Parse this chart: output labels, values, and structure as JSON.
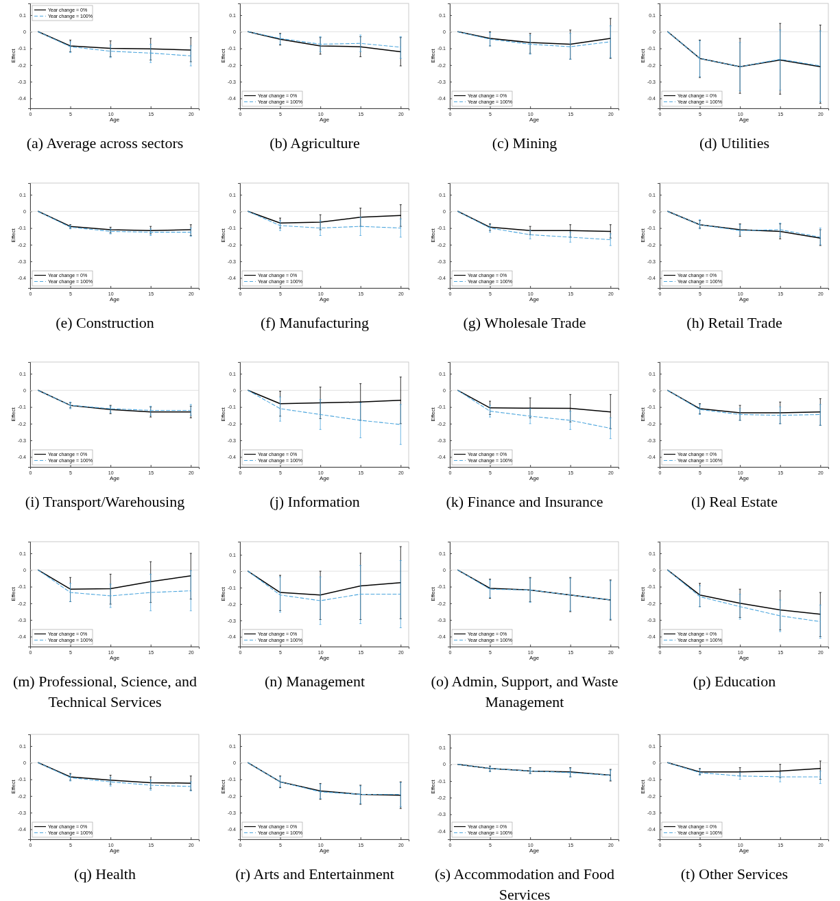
{
  "chart_data": [
    {
      "type": "line",
      "title": "(a) Average across sectors",
      "xlabel": "Age",
      "ylabel": "Effect",
      "x": [
        1,
        5,
        10,
        15,
        20
      ],
      "xlim": [
        0,
        21
      ],
      "ylim": [
        -0.46,
        0.17
      ],
      "xticks": [
        0,
        5,
        10,
        15,
        20
      ],
      "yticks": [
        -0.4,
        -0.3,
        -0.2,
        -0.1,
        0,
        0.1
      ],
      "legend": "top left",
      "ref_lines": [
        {
          "axis": "y",
          "value": 0,
          "color": "#d9d9d9"
        }
      ],
      "series": [
        {
          "name": "Year change = 0%",
          "color": "#000000",
          "line_style": "solid",
          "values": [
            0,
            -0.085,
            -0.1,
            -0.103,
            -0.11
          ],
          "errors": [
            null,
            [
              -0.12,
              -0.05
            ],
            [
              -0.15,
              -0.055
            ],
            [
              -0.17,
              -0.04
            ],
            [
              -0.18,
              -0.035
            ]
          ]
        },
        {
          "name": "Year change = 100%",
          "color": "#4da6dd",
          "line_style": "dashed",
          "values": [
            0,
            -0.09,
            -0.117,
            -0.128,
            -0.145
          ],
          "errors": [
            null,
            [
              -0.125,
              -0.06
            ],
            [
              -0.155,
              -0.08
            ],
            [
              -0.185,
              -0.075
            ],
            [
              -0.205,
              -0.085
            ]
          ]
        }
      ]
    },
    {
      "type": "line",
      "title": "(b) Agriculture",
      "xlabel": "Age",
      "ylabel": "Effect",
      "x": [
        1,
        5,
        10,
        15,
        20
      ],
      "xlim": [
        0,
        21
      ],
      "ylim": [
        -0.46,
        0.17
      ],
      "xticks": [
        0,
        5,
        10,
        15,
        20
      ],
      "yticks": [
        -0.4,
        -0.3,
        -0.2,
        -0.1,
        0,
        0.1
      ],
      "legend": "bottom left",
      "ref_lines": [
        {
          "axis": "y",
          "value": 0,
          "color": "#d9d9d9"
        }
      ],
      "series": [
        {
          "name": "Year change = 0%",
          "color": "#000000",
          "line_style": "solid",
          "values": [
            0,
            -0.045,
            -0.085,
            -0.09,
            -0.12
          ],
          "errors": [
            null,
            [
              -0.08,
              -0.01
            ],
            [
              -0.135,
              -0.035
            ],
            [
              -0.15,
              -0.03
            ],
            [
              -0.205,
              -0.035
            ]
          ]
        },
        {
          "name": "Year change = 100%",
          "color": "#4da6dd",
          "line_style": "dashed",
          "values": [
            0,
            -0.04,
            -0.075,
            -0.07,
            -0.093
          ],
          "errors": [
            null,
            [
              -0.075,
              -0.015
            ],
            [
              -0.12,
              -0.03
            ],
            [
              -0.12,
              -0.02
            ],
            [
              -0.16,
              -0.03
            ]
          ]
        }
      ]
    },
    {
      "type": "line",
      "title": "(c) Mining",
      "xlabel": "Age",
      "ylabel": "Effect",
      "x": [
        1,
        5,
        10,
        15,
        20
      ],
      "xlim": [
        0,
        21
      ],
      "ylim": [
        -0.46,
        0.17
      ],
      "xticks": [
        0,
        5,
        10,
        15,
        20
      ],
      "yticks": [
        -0.4,
        -0.3,
        -0.2,
        -0.1,
        0,
        0.1
      ],
      "legend": "bottom left",
      "ref_lines": [
        {
          "axis": "y",
          "value": 0,
          "color": "#d9d9d9"
        }
      ],
      "series": [
        {
          "name": "Year change = 0%",
          "color": "#000000",
          "line_style": "solid",
          "values": [
            0,
            -0.04,
            -0.065,
            -0.075,
            -0.04
          ],
          "errors": [
            null,
            [
              -0.085,
              0
            ],
            [
              -0.13,
              -0.01
            ],
            [
              -0.165,
              0.01
            ],
            [
              -0.16,
              0.08
            ]
          ]
        },
        {
          "name": "Year change = 100%",
          "color": "#4da6dd",
          "line_style": "dashed",
          "values": [
            0,
            -0.045,
            -0.075,
            -0.09,
            -0.06
          ],
          "errors": [
            null,
            [
              -0.085,
              -0.005
            ],
            [
              -0.135,
              -0.02
            ],
            [
              -0.165,
              -0.01
            ],
            [
              -0.155,
              0.035
            ]
          ]
        }
      ]
    },
    {
      "type": "line",
      "title": "(d) Utilities",
      "xlabel": "Age",
      "ylabel": "Effect",
      "x": [
        1,
        5,
        10,
        15,
        20
      ],
      "xlim": [
        0,
        21
      ],
      "ylim": [
        -0.46,
        0.17
      ],
      "xticks": [
        0,
        5,
        10,
        15,
        20
      ],
      "yticks": [
        -0.4,
        -0.3,
        -0.2,
        -0.1,
        0,
        0.1
      ],
      "legend": "bottom left",
      "ref_lines": [
        {
          "axis": "y",
          "value": 0,
          "color": "#d9d9d9"
        }
      ],
      "series": [
        {
          "name": "Year change = 0%",
          "color": "#000000",
          "line_style": "solid",
          "values": [
            0,
            -0.16,
            -0.21,
            -0.17,
            -0.21
          ],
          "errors": [
            null,
            [
              -0.275,
              -0.05
            ],
            [
              -0.37,
              -0.04
            ],
            [
              -0.375,
              0.05
            ],
            [
              -0.43,
              0.04
            ]
          ]
        },
        {
          "name": "Year change = 100%",
          "color": "#4da6dd",
          "line_style": "dashed",
          "values": [
            0,
            -0.16,
            -0.21,
            -0.165,
            -0.205
          ],
          "errors": [
            null,
            [
              -0.27,
              -0.055
            ],
            [
              -0.355,
              -0.065
            ],
            [
              -0.35,
              0.01
            ],
            [
              -0.42,
              0.005
            ]
          ]
        }
      ]
    },
    {
      "type": "line",
      "title": "(e) Construction",
      "xlabel": "Age",
      "ylabel": "Effect",
      "x": [
        1,
        5,
        10,
        15,
        20
      ],
      "xlim": [
        0,
        21
      ],
      "ylim": [
        -0.46,
        0.17
      ],
      "xticks": [
        0,
        5,
        10,
        15,
        20
      ],
      "yticks": [
        -0.4,
        -0.3,
        -0.2,
        -0.1,
        0,
        0.1
      ],
      "legend": "bottom left",
      "ref_lines": [
        {
          "axis": "y",
          "value": 0,
          "color": "#d9d9d9"
        }
      ],
      "series": [
        {
          "name": "Year change = 0%",
          "color": "#000000",
          "line_style": "solid",
          "values": [
            0,
            -0.09,
            -0.11,
            -0.115,
            -0.11
          ],
          "errors": [
            null,
            [
              -0.1,
              -0.08
            ],
            [
              -0.13,
              -0.095
            ],
            [
              -0.135,
              -0.09
            ],
            [
              -0.145,
              -0.08
            ]
          ]
        },
        {
          "name": "Year change = 100%",
          "color": "#4da6dd",
          "line_style": "dashed",
          "values": [
            0,
            -0.095,
            -0.12,
            -0.125,
            -0.125
          ],
          "errors": [
            null,
            [
              -0.105,
              -0.085
            ],
            [
              -0.135,
              -0.105
            ],
            [
              -0.145,
              -0.105
            ],
            [
              -0.15,
              -0.1
            ]
          ]
        }
      ]
    },
    {
      "type": "line",
      "title": "(f) Manufacturing",
      "xlabel": "Age",
      "ylabel": "Effect",
      "x": [
        1,
        5,
        10,
        15,
        20
      ],
      "xlim": [
        0,
        21
      ],
      "ylim": [
        -0.46,
        0.17
      ],
      "xticks": [
        0,
        5,
        10,
        15,
        20
      ],
      "yticks": [
        -0.4,
        -0.3,
        -0.2,
        -0.1,
        0,
        0.1
      ],
      "legend": "bottom left",
      "ref_lines": [
        {
          "axis": "y",
          "value": 0,
          "color": "#d9d9d9"
        }
      ],
      "series": [
        {
          "name": "Year change = 0%",
          "color": "#000000",
          "line_style": "solid",
          "values": [
            0,
            -0.07,
            -0.065,
            -0.035,
            -0.025
          ],
          "errors": [
            null,
            [
              -0.1,
              -0.04
            ],
            [
              -0.11,
              -0.02
            ],
            [
              -0.09,
              0.02
            ],
            [
              -0.09,
              0.04
            ]
          ]
        },
        {
          "name": "Year change = 100%",
          "color": "#4da6dd",
          "line_style": "dashed",
          "values": [
            0,
            -0.085,
            -0.1,
            -0.09,
            -0.1
          ],
          "errors": [
            null,
            [
              -0.115,
              -0.055
            ],
            [
              -0.145,
              -0.055
            ],
            [
              -0.145,
              -0.035
            ],
            [
              -0.155,
              -0.045
            ]
          ]
        }
      ]
    },
    {
      "type": "line",
      "title": "(g) Wholesale Trade",
      "xlabel": "Age",
      "ylabel": "Effect",
      "x": [
        1,
        5,
        10,
        15,
        20
      ],
      "xlim": [
        0,
        21
      ],
      "ylim": [
        -0.46,
        0.17
      ],
      "xticks": [
        0,
        5,
        10,
        15,
        20
      ],
      "yticks": [
        -0.4,
        -0.3,
        -0.2,
        -0.1,
        0,
        0.1
      ],
      "legend": "bottom left",
      "ref_lines": [
        {
          "axis": "y",
          "value": 0,
          "color": "#d9d9d9"
        }
      ],
      "series": [
        {
          "name": "Year change = 0%",
          "color": "#000000",
          "line_style": "solid",
          "values": [
            0,
            -0.095,
            -0.115,
            -0.115,
            -0.12
          ],
          "errors": [
            null,
            [
              -0.115,
              -0.075
            ],
            [
              -0.14,
              -0.09
            ],
            [
              -0.155,
              -0.08
            ],
            [
              -0.16,
              -0.08
            ]
          ]
        },
        {
          "name": "Year change = 100%",
          "color": "#4da6dd",
          "line_style": "dashed",
          "values": [
            0,
            -0.1,
            -0.14,
            -0.155,
            -0.17
          ],
          "errors": [
            null,
            [
              -0.125,
              -0.08
            ],
            [
              -0.165,
              -0.115
            ],
            [
              -0.185,
              -0.125
            ],
            [
              -0.205,
              -0.135
            ]
          ]
        }
      ]
    },
    {
      "type": "line",
      "title": "(h) Retail Trade",
      "xlabel": "Age",
      "ylabel": "Effect",
      "x": [
        1,
        5,
        10,
        15,
        20
      ],
      "xlim": [
        0,
        21
      ],
      "ylim": [
        -0.46,
        0.17
      ],
      "xticks": [
        0,
        5,
        10,
        15,
        20
      ],
      "yticks": [
        -0.4,
        -0.3,
        -0.2,
        -0.1,
        0,
        0.1
      ],
      "legend": "bottom left",
      "ref_lines": [
        {
          "axis": "y",
          "value": 0,
          "color": "#d9d9d9"
        }
      ],
      "series": [
        {
          "name": "Year change = 0%",
          "color": "#000000",
          "line_style": "solid",
          "values": [
            0,
            -0.08,
            -0.11,
            -0.12,
            -0.16
          ],
          "errors": [
            null,
            [
              -0.1,
              -0.055
            ],
            [
              -0.15,
              -0.075
            ],
            [
              -0.165,
              -0.075
            ],
            [
              -0.205,
              -0.11
            ]
          ]
        },
        {
          "name": "Year change = 100%",
          "color": "#4da6dd",
          "line_style": "dashed",
          "values": [
            0,
            -0.08,
            -0.115,
            -0.11,
            -0.155
          ],
          "errors": [
            null,
            [
              -0.105,
              -0.05
            ],
            [
              -0.14,
              -0.08
            ],
            [
              -0.15,
              -0.07
            ],
            [
              -0.2,
              -0.1
            ]
          ]
        }
      ]
    },
    {
      "type": "line",
      "title": "(i) Transport/Warehousing",
      "xlabel": "Age",
      "ylabel": "Effect",
      "x": [
        1,
        5,
        10,
        15,
        20
      ],
      "xlim": [
        0,
        21
      ],
      "ylim": [
        -0.46,
        0.17
      ],
      "xticks": [
        0,
        5,
        10,
        15,
        20
      ],
      "yticks": [
        -0.4,
        -0.3,
        -0.2,
        -0.1,
        0,
        0.1
      ],
      "legend": "bottom left",
      "ref_lines": [
        {
          "axis": "y",
          "value": 0,
          "color": "#d9d9d9"
        }
      ],
      "series": [
        {
          "name": "Year change = 0%",
          "color": "#000000",
          "line_style": "solid",
          "values": [
            0,
            -0.09,
            -0.115,
            -0.13,
            -0.13
          ],
          "errors": [
            null,
            [
              -0.105,
              -0.075
            ],
            [
              -0.14,
              -0.09
            ],
            [
              -0.16,
              -0.1
            ],
            [
              -0.165,
              -0.095
            ]
          ]
        },
        {
          "name": "Year change = 100%",
          "color": "#4da6dd",
          "line_style": "dashed",
          "values": [
            0,
            -0.09,
            -0.11,
            -0.12,
            -0.12
          ],
          "errors": [
            null,
            [
              -0.11,
              -0.07
            ],
            [
              -0.135,
              -0.095
            ],
            [
              -0.15,
              -0.095
            ],
            [
              -0.15,
              -0.085
            ]
          ]
        }
      ]
    },
    {
      "type": "line",
      "title": "(j) Information",
      "xlabel": "Age",
      "ylabel": "Effect",
      "x": [
        1,
        5,
        10,
        15,
        20
      ],
      "xlim": [
        0,
        21
      ],
      "ylim": [
        -0.46,
        0.17
      ],
      "xticks": [
        0,
        5,
        10,
        15,
        20
      ],
      "yticks": [
        -0.4,
        -0.3,
        -0.2,
        -0.1,
        0,
        0.1
      ],
      "legend": "bottom left",
      "ref_lines": [
        {
          "axis": "y",
          "value": 0,
          "color": "#d9d9d9"
        }
      ],
      "series": [
        {
          "name": "Year change = 0%",
          "color": "#000000",
          "line_style": "solid",
          "values": [
            0,
            -0.08,
            -0.075,
            -0.07,
            -0.06
          ],
          "errors": [
            null,
            [
              -0.155,
              -0.005
            ],
            [
              -0.17,
              0.02
            ],
            [
              -0.18,
              0.04
            ],
            [
              -0.2,
              0.08
            ]
          ]
        },
        {
          "name": "Year change = 100%",
          "color": "#4da6dd",
          "line_style": "dashed",
          "values": [
            0,
            -0.11,
            -0.145,
            -0.18,
            -0.205
          ],
          "errors": [
            null,
            [
              -0.185,
              -0.04
            ],
            [
              -0.235,
              -0.055
            ],
            [
              -0.285,
              -0.075
            ],
            [
              -0.325,
              -0.085
            ]
          ]
        }
      ]
    },
    {
      "type": "line",
      "title": "(k) Finance and Insurance",
      "xlabel": "Age",
      "ylabel": "Effect",
      "x": [
        1,
        5,
        10,
        15,
        20
      ],
      "xlim": [
        0,
        21
      ],
      "ylim": [
        -0.46,
        0.17
      ],
      "xticks": [
        0,
        5,
        10,
        15,
        20
      ],
      "yticks": [
        -0.4,
        -0.3,
        -0.2,
        -0.1,
        0,
        0.1
      ],
      "legend": "bottom left",
      "ref_lines": [
        {
          "axis": "y",
          "value": 0,
          "color": "#d9d9d9"
        }
      ],
      "series": [
        {
          "name": "Year change = 0%",
          "color": "#000000",
          "line_style": "solid",
          "values": [
            0,
            -0.105,
            -0.107,
            -0.108,
            -0.13
          ],
          "errors": [
            null,
            [
              -0.145,
              -0.065
            ],
            [
              -0.165,
              -0.045
            ],
            [
              -0.19,
              -0.025
            ],
            [
              -0.23,
              -0.025
            ]
          ]
        },
        {
          "name": "Year change = 100%",
          "color": "#4da6dd",
          "line_style": "dashed",
          "values": [
            0,
            -0.125,
            -0.155,
            -0.18,
            -0.228
          ],
          "errors": [
            null,
            [
              -0.16,
              -0.09
            ],
            [
              -0.2,
              -0.11
            ],
            [
              -0.235,
              -0.125
            ],
            [
              -0.29,
              -0.165
            ]
          ]
        }
      ]
    },
    {
      "type": "line",
      "title": "(l) Real Estate",
      "xlabel": "Age",
      "ylabel": "Effect",
      "x": [
        1,
        5,
        10,
        15,
        20
      ],
      "xlim": [
        0,
        21
      ],
      "ylim": [
        -0.46,
        0.17
      ],
      "xticks": [
        0,
        5,
        10,
        15,
        20
      ],
      "yticks": [
        -0.4,
        -0.3,
        -0.2,
        -0.1,
        0,
        0.1
      ],
      "legend": "bottom left",
      "ref_lines": [
        {
          "axis": "y",
          "value": 0,
          "color": "#d9d9d9"
        }
      ],
      "series": [
        {
          "name": "Year change = 0%",
          "color": "#000000",
          "line_style": "solid",
          "values": [
            0,
            -0.11,
            -0.135,
            -0.135,
            -0.13
          ],
          "errors": [
            null,
            [
              -0.14,
              -0.08
            ],
            [
              -0.18,
              -0.09
            ],
            [
              -0.2,
              -0.07
            ],
            [
              -0.21,
              -0.05
            ]
          ]
        },
        {
          "name": "Year change = 100%",
          "color": "#4da6dd",
          "line_style": "dashed",
          "values": [
            0,
            -0.115,
            -0.145,
            -0.15,
            -0.145
          ],
          "errors": [
            null,
            [
              -0.145,
              -0.085
            ],
            [
              -0.18,
              -0.11
            ],
            [
              -0.2,
              -0.1
            ],
            [
              -0.21,
              -0.085
            ]
          ]
        }
      ]
    },
    {
      "type": "line",
      "title": "(m) Professional, Science, and Technical Services",
      "xlabel": "Age",
      "ylabel": "Effect",
      "x": [
        1,
        5,
        10,
        15,
        20
      ],
      "xlim": [
        0,
        21
      ],
      "ylim": [
        -0.46,
        0.17
      ],
      "xticks": [
        0,
        5,
        10,
        15,
        20
      ],
      "yticks": [
        -0.4,
        -0.3,
        -0.2,
        -0.1,
        0,
        0.1
      ],
      "legend": "bottom left",
      "ref_lines": [
        {
          "axis": "y",
          "value": 0,
          "color": "#d9d9d9"
        }
      ],
      "series": [
        {
          "name": "Year change = 0%",
          "color": "#000000",
          "line_style": "solid",
          "values": [
            0,
            -0.115,
            -0.112,
            -0.07,
            -0.035
          ],
          "errors": [
            null,
            [
              -0.19,
              -0.045
            ],
            [
              -0.205,
              -0.025
            ],
            [
              -0.195,
              0.05
            ],
            [
              -0.175,
              0.1
            ]
          ]
        },
        {
          "name": "Year change = 100%",
          "color": "#4da6dd",
          "line_style": "dashed",
          "values": [
            0,
            -0.135,
            -0.155,
            -0.135,
            -0.125
          ],
          "errors": [
            null,
            [
              -0.19,
              -0.08
            ],
            [
              -0.225,
              -0.085
            ],
            [
              -0.245,
              -0.025
            ],
            [
              -0.245,
              -0.005
            ]
          ]
        }
      ]
    },
    {
      "type": "line",
      "title": "(n) Management",
      "xlabel": "Age",
      "ylabel": "Effect",
      "x": [
        1,
        5,
        10,
        15,
        20
      ],
      "xlim": [
        0,
        21
      ],
      "ylim": [
        -0.46,
        0.18
      ],
      "xticks": [
        0,
        5,
        10,
        15,
        20
      ],
      "yticks": [
        -0.4,
        -0.3,
        -0.2,
        -0.1,
        0,
        0.1
      ],
      "legend": "bottom left",
      "ref_lines": [
        {
          "axis": "y",
          "value": 0,
          "color": "#d9d9d9"
        }
      ],
      "series": [
        {
          "name": "Year change = 0%",
          "color": "#000000",
          "line_style": "solid",
          "values": [
            0,
            -0.13,
            -0.145,
            -0.09,
            -0.07
          ],
          "errors": [
            null,
            [
              -0.24,
              -0.025
            ],
            [
              -0.295,
              0
            ],
            [
              -0.295,
              0.11
            ],
            [
              -0.29,
              0.15
            ]
          ]
        },
        {
          "name": "Year change = 100%",
          "color": "#4da6dd",
          "line_style": "dashed",
          "values": [
            0,
            -0.145,
            -0.18,
            -0.14,
            -0.14
          ],
          "errors": [
            null,
            [
              -0.25,
              -0.035
            ],
            [
              -0.325,
              -0.035
            ],
            [
              -0.32,
              0.035
            ],
            [
              -0.345,
              0.065
            ]
          ]
        }
      ]
    },
    {
      "type": "line",
      "title": "(o) Admin, Support, and Waste Management",
      "xlabel": "Age",
      "ylabel": "Effect",
      "x": [
        1,
        5,
        10,
        15,
        20
      ],
      "xlim": [
        0,
        21
      ],
      "ylim": [
        -0.46,
        0.17
      ],
      "xticks": [
        0,
        5,
        10,
        15,
        20
      ],
      "yticks": [
        -0.4,
        -0.3,
        -0.2,
        -0.1,
        0,
        0.1
      ],
      "legend": "bottom left",
      "ref_lines": [
        {
          "axis": "y",
          "value": 0,
          "color": "#d9d9d9"
        }
      ],
      "series": [
        {
          "name": "Year change = 0%",
          "color": "#000000",
          "line_style": "solid",
          "values": [
            0,
            -0.11,
            -0.12,
            -0.15,
            -0.18
          ],
          "errors": [
            null,
            [
              -0.17,
              -0.055
            ],
            [
              -0.19,
              -0.045
            ],
            [
              -0.25,
              -0.045
            ],
            [
              -0.3,
              -0.06
            ]
          ]
        },
        {
          "name": "Year change = 100%",
          "color": "#4da6dd",
          "line_style": "dashed",
          "values": [
            0,
            -0.115,
            -0.12,
            -0.15,
            -0.18
          ],
          "errors": [
            null,
            [
              -0.165,
              -0.06
            ],
            [
              -0.195,
              -0.05
            ],
            [
              -0.245,
              -0.05
            ],
            [
              -0.295,
              -0.065
            ]
          ]
        }
      ]
    },
    {
      "type": "line",
      "title": "(p) Education",
      "xlabel": "Age",
      "ylabel": "Effect",
      "x": [
        1,
        5,
        10,
        15,
        20
      ],
      "xlim": [
        0,
        21
      ],
      "ylim": [
        -0.46,
        0.17
      ],
      "xticks": [
        0,
        5,
        10,
        15,
        20
      ],
      "yticks": [
        -0.4,
        -0.3,
        -0.2,
        -0.1,
        0,
        0.1
      ],
      "legend": "bottom left",
      "ref_lines": [
        {
          "axis": "y",
          "value": 0,
          "color": "#d9d9d9"
        }
      ],
      "series": [
        {
          "name": "Year change = 0%",
          "color": "#000000",
          "line_style": "solid",
          "values": [
            0,
            -0.15,
            -0.2,
            -0.24,
            -0.265
          ],
          "errors": [
            null,
            [
              -0.22,
              -0.08
            ],
            [
              -0.285,
              -0.115
            ],
            [
              -0.36,
              -0.125
            ],
            [
              -0.4,
              -0.135
            ]
          ]
        },
        {
          "name": "Year change = 100%",
          "color": "#4da6dd",
          "line_style": "dashed",
          "values": [
            0,
            -0.16,
            -0.22,
            -0.275,
            -0.31
          ],
          "errors": [
            null,
            [
              -0.22,
              -0.095
            ],
            [
              -0.295,
              -0.145
            ],
            [
              -0.37,
              -0.18
            ],
            [
              -0.41,
              -0.21
            ]
          ]
        }
      ]
    },
    {
      "type": "line",
      "title": "(q) Health",
      "xlabel": "Age",
      "ylabel": "Effect",
      "x": [
        1,
        5,
        10,
        15,
        20
      ],
      "xlim": [
        0,
        21
      ],
      "ylim": [
        -0.46,
        0.17
      ],
      "xticks": [
        0,
        5,
        10,
        15,
        20
      ],
      "yticks": [
        -0.4,
        -0.3,
        -0.2,
        -0.1,
        0,
        0.1
      ],
      "legend": "bottom left",
      "ref_lines": [
        {
          "axis": "y",
          "value": 0,
          "color": "#d9d9d9"
        }
      ],
      "series": [
        {
          "name": "Year change = 0%",
          "color": "#000000",
          "line_style": "solid",
          "values": [
            0,
            -0.085,
            -0.105,
            -0.12,
            -0.123
          ],
          "errors": [
            null,
            [
              -0.105,
              -0.065
            ],
            [
              -0.13,
              -0.075
            ],
            [
              -0.155,
              -0.085
            ],
            [
              -0.165,
              -0.08
            ]
          ]
        },
        {
          "name": "Year change = 100%",
          "color": "#4da6dd",
          "line_style": "dashed",
          "values": [
            0,
            -0.09,
            -0.115,
            -0.135,
            -0.143
          ],
          "errors": [
            null,
            [
              -0.11,
              -0.07
            ],
            [
              -0.14,
              -0.09
            ],
            [
              -0.165,
              -0.105
            ],
            [
              -0.17,
              -0.115
            ]
          ]
        }
      ]
    },
    {
      "type": "line",
      "title": "(r) Arts and Entertainment",
      "xlabel": "Age",
      "ylabel": "Effect",
      "x": [
        1,
        5,
        10,
        15,
        20
      ],
      "xlim": [
        0,
        21
      ],
      "ylim": [
        -0.46,
        0.17
      ],
      "xticks": [
        0,
        5,
        10,
        15,
        20
      ],
      "yticks": [
        -0.4,
        -0.3,
        -0.2,
        -0.1,
        0,
        0.1
      ],
      "legend": "bottom left",
      "ref_lines": [
        {
          "axis": "y",
          "value": 0,
          "color": "#d9d9d9"
        }
      ],
      "series": [
        {
          "name": "Year change = 0%",
          "color": "#000000",
          "line_style": "solid",
          "values": [
            0,
            -0.115,
            -0.17,
            -0.19,
            -0.195
          ],
          "errors": [
            null,
            [
              -0.15,
              -0.08
            ],
            [
              -0.22,
              -0.125
            ],
            [
              -0.25,
              -0.135
            ],
            [
              -0.275,
              -0.115
            ]
          ]
        },
        {
          "name": "Year change = 100%",
          "color": "#4da6dd",
          "line_style": "dashed",
          "values": [
            0,
            -0.115,
            -0.175,
            -0.19,
            -0.19
          ],
          "errors": [
            null,
            [
              -0.145,
              -0.085
            ],
            [
              -0.215,
              -0.13
            ],
            [
              -0.245,
              -0.14
            ],
            [
              -0.265,
              -0.12
            ]
          ]
        }
      ]
    },
    {
      "type": "line",
      "title": "(s) Accommodation and Food Services",
      "xlabel": "Age",
      "ylabel": "Effect",
      "x": [
        1,
        5,
        10,
        15,
        20
      ],
      "xlim": [
        0,
        21
      ],
      "ylim": [
        -0.45,
        0.18
      ],
      "xticks": [
        0,
        5,
        10,
        15,
        20
      ],
      "yticks": [
        -0.4,
        -0.3,
        -0.2,
        -0.1,
        0,
        0.1
      ],
      "legend": "bottom left",
      "ref_lines": [
        {
          "axis": "y",
          "value": 0,
          "color": "#d9d9d9"
        }
      ],
      "series": [
        {
          "name": "Year change = 0%",
          "color": "#000000",
          "line_style": "solid",
          "values": [
            0,
            -0.025,
            -0.04,
            -0.045,
            -0.065
          ],
          "errors": [
            null,
            [
              -0.04,
              -0.01
            ],
            [
              -0.055,
              -0.02
            ],
            [
              -0.075,
              -0.02
            ],
            [
              -0.1,
              -0.03
            ]
          ]
        },
        {
          "name": "Year change = 100%",
          "color": "#4da6dd",
          "line_style": "dashed",
          "values": [
            0,
            -0.025,
            -0.04,
            -0.05,
            -0.065
          ],
          "errors": [
            null,
            [
              -0.045,
              -0.015
            ],
            [
              -0.055,
              -0.025
            ],
            [
              -0.075,
              -0.025
            ],
            [
              -0.095,
              -0.035
            ]
          ]
        }
      ]
    },
    {
      "type": "line",
      "title": "(t) Other Services",
      "xlabel": "Age",
      "ylabel": "Effect",
      "x": [
        1,
        5,
        10,
        15,
        20
      ],
      "xlim": [
        0,
        21
      ],
      "ylim": [
        -0.46,
        0.17
      ],
      "xticks": [
        0,
        5,
        10,
        15,
        20
      ],
      "yticks": [
        -0.4,
        -0.3,
        -0.2,
        -0.1,
        0,
        0.1
      ],
      "legend": "bottom left",
      "ref_lines": [
        {
          "axis": "y",
          "value": 0,
          "color": "#d9d9d9"
        }
      ],
      "series": [
        {
          "name": "Year change = 0%",
          "color": "#000000",
          "line_style": "solid",
          "values": [
            0,
            -0.055,
            -0.055,
            -0.05,
            -0.035
          ],
          "errors": [
            null,
            [
              -0.07,
              -0.035
            ],
            [
              -0.08,
              -0.03
            ],
            [
              -0.09,
              -0.01
            ],
            [
              -0.1,
              0.01
            ]
          ]
        },
        {
          "name": "Year change = 100%",
          "color": "#4da6dd",
          "line_style": "dashed",
          "values": [
            0,
            -0.06,
            -0.08,
            -0.085,
            -0.085
          ],
          "errors": [
            null,
            [
              -0.075,
              -0.04
            ],
            [
              -0.1,
              -0.06
            ],
            [
              -0.115,
              -0.06
            ],
            [
              -0.125,
              -0.05
            ]
          ]
        }
      ]
    }
  ]
}
